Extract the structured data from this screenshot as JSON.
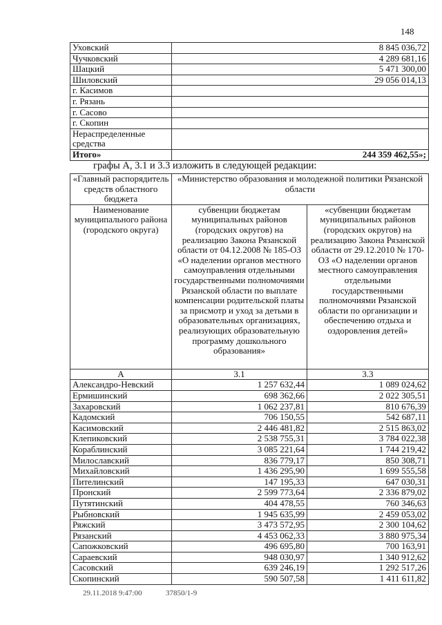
{
  "page_number": "148",
  "top_table": {
    "rows": [
      {
        "name": "Уховский",
        "value": "8 845 036,72"
      },
      {
        "name": "Чучковский",
        "value": "4 289 681,16"
      },
      {
        "name": "Шацкий",
        "value": "5 471 300,00"
      },
      {
        "name": "Шиловский",
        "value": "29 056 014,13"
      },
      {
        "name": "г. Касимов",
        "value": ""
      },
      {
        "name": "г. Рязань",
        "value": ""
      },
      {
        "name": "г. Сасово",
        "value": ""
      },
      {
        "name": "г. Скопин",
        "value": ""
      },
      {
        "name": "Нераспределенные средства",
        "value": ""
      }
    ],
    "total_label": "Итого»",
    "total_value": "244 359 462,55»;"
  },
  "intro_text": "графы А, 3.1 и 3.3 изложить в следующей редакции:",
  "main_table": {
    "header_row1": {
      "col_a": "«Главный распорядитель средств областного бюджета",
      "col_b": "«Министерство образования и молодежной политики Рязанской области"
    },
    "header_row2": {
      "col_a": "Наименование муниципального района (городского округа)",
      "col_31": "субвенции бюджетам муниципальных районов (городских округов) на реализацию Закона Рязанской области от 04.12.2008 № 185-ОЗ «О наделении органов местного самоуправления отдельными государственными полномочиями Рязанской области по выплате компенсации родительской платы за присмотр и уход за детьми в образовательных организациях, реализующих образовательную программу дошкольного образования»",
      "col_33": "«субвенции бюджетам муниципальных районов (городских округов) на реализацию Закона Рязанской области от 29.12.2010 № 170-ОЗ «О наделении органов местного самоуправления отдельными государственными полномочиями Рязанской области по организации и обеспечению отдыха и оздоровления детей»"
    },
    "column_numbers": [
      "А",
      "3.1",
      "3.3"
    ],
    "rows": [
      [
        "Александро-Невский",
        "1 257 632,44",
        "1 089 024,62"
      ],
      [
        "Ермишинский",
        "698 362,66",
        "2 022 305,51"
      ],
      [
        "Захаровский",
        "1 062 237,81",
        "810 676,39"
      ],
      [
        "Кадомский",
        "706 150,55",
        "542 687,11"
      ],
      [
        "Касимовский",
        "2 446 481,82",
        "2 515 863,02"
      ],
      [
        "Клепиковский",
        "2 538 755,31",
        "3 784 022,38"
      ],
      [
        "Кораблинский",
        "3 085 221,64",
        "1 744 219,42"
      ],
      [
        "Милославский",
        "836 779,17",
        "850 308,71"
      ],
      [
        "Михайловский",
        "1 436 295,90",
        "1 699 555,58"
      ],
      [
        "Пителинский",
        "147 195,33",
        "647 030,31"
      ],
      [
        "Пронский",
        "2 599 773,64",
        "2 336 879,02"
      ],
      [
        "Путятинский",
        "404 478,55",
        "760 346,63"
      ],
      [
        "Рыбновский",
        "1 945 635,99",
        "2 459 053,02"
      ],
      [
        "Ряжский",
        "3 473 572,95",
        "2 300 104,62"
      ],
      [
        "Рязанский",
        "4 453 062,33",
        "3 880 975,34"
      ],
      [
        "Сапожковский",
        "496 695,80",
        "700 163,91"
      ],
      [
        "Сараевский",
        "948 030,97",
        "1 340 912,62"
      ],
      [
        "Сасовский",
        "639 246,19",
        "1 292 517,26"
      ],
      [
        "Скопинский",
        "590 507,58",
        "1 411 611,82"
      ]
    ]
  },
  "footer": {
    "timestamp": "29.11.2018 9:47:00",
    "doc_code": "37850/1-9"
  }
}
